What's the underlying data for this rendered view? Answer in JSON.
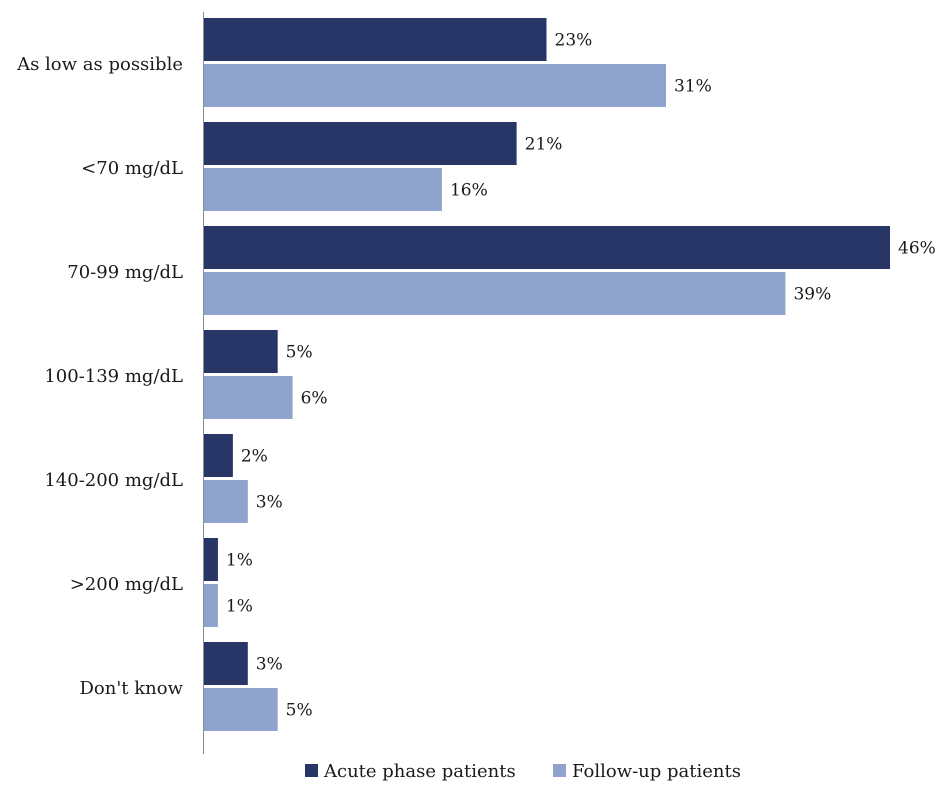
{
  "chart_data": {
    "type": "bar",
    "orientation": "horizontal",
    "categories": [
      "As low as possible",
      "<70 mg/dL",
      "70-99 mg/dL",
      "100-139 mg/dL",
      "140-200 mg/dL",
      ">200 mg/dL",
      "Don't know"
    ],
    "series": [
      {
        "name": "Acute phase patients",
        "color": "#283567",
        "values": [
          23,
          21,
          46,
          5,
          2,
          1,
          3
        ],
        "labels": [
          "23%",
          "21%",
          "46%",
          "5%",
          "2%",
          "1%",
          "3%"
        ]
      },
      {
        "name": "Follow-up patients",
        "color": "#8fa3cc",
        "values": [
          31,
          16,
          39,
          6,
          3,
          1,
          5
        ],
        "labels": [
          "31%",
          "16%",
          "39%",
          "6%",
          "3%",
          "1%",
          "5%"
        ]
      }
    ],
    "value_unit": "%",
    "xlim": [
      0,
      46
    ],
    "legend_position": "bottom",
    "grid": false
  }
}
